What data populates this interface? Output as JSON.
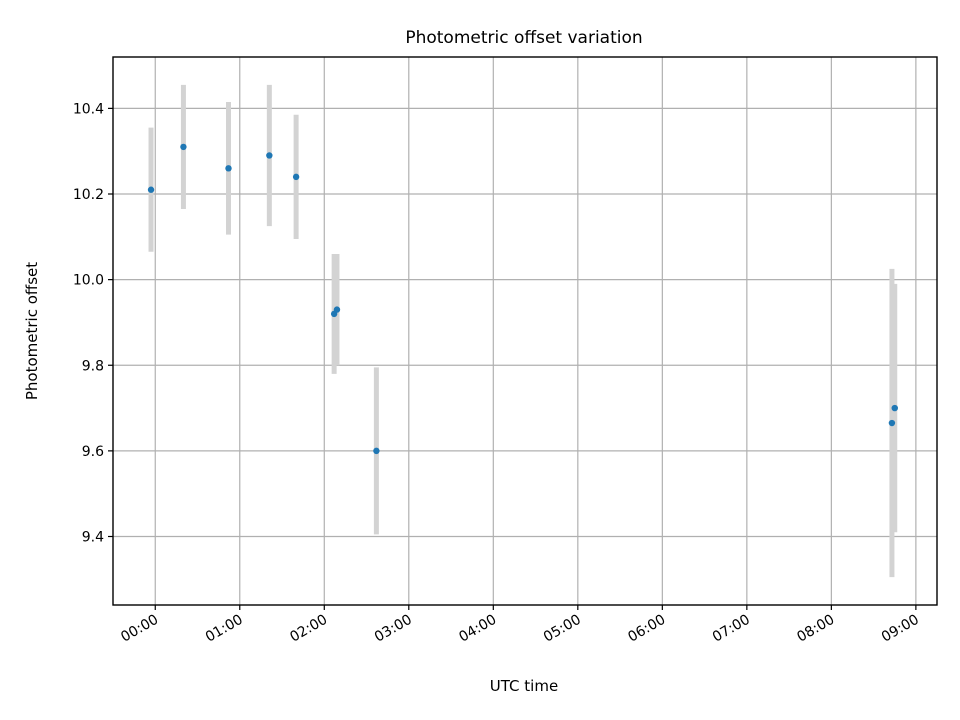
{
  "chart_data": {
    "type": "scatter",
    "title": "Photometric offset variation",
    "xlabel": "UTC time",
    "ylabel": "Photometric offset",
    "x_ticks": [
      "00:00",
      "01:00",
      "02:00",
      "03:00",
      "04:00",
      "05:00",
      "06:00",
      "07:00",
      "08:00",
      "09:00"
    ],
    "y_ticks": [
      "9.4",
      "9.6",
      "9.8",
      "10.0",
      "10.2",
      "10.4"
    ],
    "xlim": [
      "-00:30",
      "09:15"
    ],
    "ylim": [
      9.24,
      10.52
    ],
    "grid": true,
    "colors": {
      "point": "#1f77b4",
      "errorbar": "#d3d3d3",
      "grid": "#b0b0b0"
    },
    "points": [
      {
        "x": "-00:03",
        "y": 10.21,
        "err": 0.145
      },
      {
        "x": "00:20",
        "y": 10.31,
        "err": 0.145
      },
      {
        "x": "00:52",
        "y": 10.26,
        "err": 0.155
      },
      {
        "x": "01:21",
        "y": 10.29,
        "err": 0.165
      },
      {
        "x": "01:40",
        "y": 10.24,
        "err": 0.145
      },
      {
        "x": "02:07",
        "y": 9.92,
        "err": 0.14
      },
      {
        "x": "02:09",
        "y": 9.93,
        "err": 0.13
      },
      {
        "x": "02:37",
        "y": 9.6,
        "err": 0.195
      },
      {
        "x": "08:43",
        "y": 9.665,
        "err": 0.36
      },
      {
        "x": "08:45",
        "y": 9.7,
        "err": 0.29
      }
    ]
  }
}
